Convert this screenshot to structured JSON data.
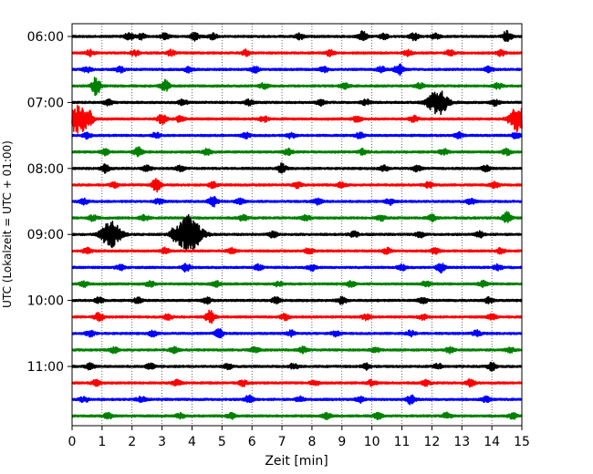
{
  "chart_data": {
    "type": "line",
    "title": "",
    "xlabel": "Zeit  [min]",
    "ylabel": "UTC (Lokalzeit = UTC + 01:00)",
    "xlim": [
      0,
      15
    ],
    "x_ticks": [
      "0",
      "1",
      "2",
      "3",
      "4",
      "5",
      "6",
      "7",
      "8",
      "9",
      "10",
      "11",
      "12",
      "13",
      "14",
      "15"
    ],
    "y_ticks": [
      "06:00",
      "07:00",
      "08:00",
      "09:00",
      "10:00",
      "11:00"
    ],
    "grid": "vertical-dotted",
    "series_colors": [
      "#000000",
      "#ff0000",
      "#0000ff",
      "#008000"
    ],
    "traces": [
      {
        "time": "06:00",
        "color": "#000000",
        "events": [
          [
            1.9,
            4
          ],
          [
            2.3,
            3
          ],
          [
            3.1,
            3
          ],
          [
            4.1,
            4
          ],
          [
            4.7,
            3
          ],
          [
            7.6,
            3
          ],
          [
            9.7,
            6
          ],
          [
            10.4,
            3
          ],
          [
            11.4,
            4
          ],
          [
            12.1,
            3
          ],
          [
            14.5,
            6
          ]
        ]
      },
      {
        "time": "06:15",
        "color": "#ff0000",
        "events": [
          [
            0.6,
            3
          ],
          [
            2.1,
            3
          ],
          [
            3.3,
            3
          ],
          [
            5.8,
            3
          ],
          [
            8.6,
            3
          ],
          [
            11.2,
            3
          ],
          [
            12.6,
            3
          ],
          [
            14.3,
            3
          ]
        ]
      },
      {
        "time": "06:30",
        "color": "#0000ff",
        "events": [
          [
            0.5,
            3
          ],
          [
            1.6,
            3
          ],
          [
            3.9,
            3
          ],
          [
            6.1,
            3
          ],
          [
            8.4,
            3
          ],
          [
            10.3,
            3
          ],
          [
            10.9,
            6
          ],
          [
            13.9,
            3
          ]
        ]
      },
      {
        "time": "06:45",
        "color": "#008000",
        "events": [
          [
            0.8,
            3
          ],
          [
            0.8,
            7
          ],
          [
            3.1,
            6
          ],
          [
            6.4,
            3
          ],
          [
            9.1,
            3
          ],
          [
            11.6,
            3
          ],
          [
            14.2,
            3
          ]
        ]
      },
      {
        "time": "07:00",
        "color": "#000000",
        "events": [
          [
            1.2,
            3
          ],
          [
            3.7,
            3
          ],
          [
            5.9,
            3
          ],
          [
            8.3,
            3
          ],
          [
            9.8,
            3
          ],
          [
            12.2,
            14
          ],
          [
            14.1,
            3
          ]
        ]
      },
      {
        "time": "07:15",
        "color": "#ff0000",
        "events": [
          [
            0.2,
            16
          ],
          [
            0.6,
            5
          ],
          [
            3.0,
            5
          ],
          [
            3.6,
            3
          ],
          [
            6.4,
            3
          ],
          [
            9.5,
            3
          ],
          [
            11.4,
            3
          ],
          [
            14.9,
            14
          ]
        ]
      },
      {
        "time": "07:30",
        "color": "#0000ff",
        "events": [
          [
            0.5,
            3
          ],
          [
            2.8,
            3
          ],
          [
            5.8,
            3
          ],
          [
            7.3,
            3
          ],
          [
            9.6,
            3
          ],
          [
            12.9,
            3
          ],
          [
            14.8,
            3
          ]
        ]
      },
      {
        "time": "07:45",
        "color": "#008000",
        "events": [
          [
            1.1,
            3
          ],
          [
            2.2,
            5
          ],
          [
            4.5,
            3
          ],
          [
            7.2,
            3
          ],
          [
            9.7,
            3
          ],
          [
            12.4,
            3
          ],
          [
            14.5,
            3
          ]
        ]
      },
      {
        "time": "08:00",
        "color": "#000000",
        "events": [
          [
            1.1,
            4
          ],
          [
            2.5,
            3
          ],
          [
            3.6,
            3
          ],
          [
            7.0,
            5
          ],
          [
            10.4,
            3
          ],
          [
            11.5,
            3
          ],
          [
            13.8,
            3
          ]
        ]
      },
      {
        "time": "08:15",
        "color": "#ff0000",
        "events": [
          [
            1.4,
            3
          ],
          [
            2.8,
            7
          ],
          [
            4.7,
            3
          ],
          [
            7.5,
            3
          ],
          [
            9.0,
            3
          ],
          [
            11.9,
            3
          ],
          [
            14.1,
            3
          ]
        ]
      },
      {
        "time": "08:30",
        "color": "#0000ff",
        "events": [
          [
            0.4,
            3
          ],
          [
            2.9,
            3
          ],
          [
            4.7,
            6
          ],
          [
            5.6,
            3
          ],
          [
            8.2,
            3
          ],
          [
            10.6,
            3
          ],
          [
            13.3,
            3
          ]
        ]
      },
      {
        "time": "08:45",
        "color": "#008000",
        "events": [
          [
            0.7,
            3
          ],
          [
            2.4,
            3
          ],
          [
            5.7,
            3
          ],
          [
            7.8,
            3
          ],
          [
            10.3,
            3
          ],
          [
            12.0,
            3
          ],
          [
            14.5,
            6
          ]
        ]
      },
      {
        "time": "09:00",
        "color": "#000000",
        "events": [
          [
            1.3,
            14
          ],
          [
            3.4,
            5
          ],
          [
            3.8,
            16
          ],
          [
            4.1,
            9
          ],
          [
            6.7,
            3
          ],
          [
            9.4,
            3
          ],
          [
            11.6,
            3
          ],
          [
            13.6,
            3
          ]
        ]
      },
      {
        "time": "09:15",
        "color": "#ff0000",
        "events": [
          [
            0.5,
            3
          ],
          [
            3.1,
            3
          ],
          [
            5.3,
            3
          ],
          [
            7.9,
            3
          ],
          [
            10.5,
            3
          ],
          [
            12.1,
            3
          ],
          [
            14.3,
            3
          ]
        ]
      },
      {
        "time": "09:30",
        "color": "#0000ff",
        "events": [
          [
            1.6,
            3
          ],
          [
            3.8,
            4
          ],
          [
            6.2,
            3
          ],
          [
            8.0,
            3
          ],
          [
            11.0,
            3
          ],
          [
            12.3,
            5
          ],
          [
            14.2,
            3
          ]
        ]
      },
      {
        "time": "09:45",
        "color": "#008000",
        "events": [
          [
            0.4,
            3
          ],
          [
            2.6,
            3
          ],
          [
            4.8,
            3
          ],
          [
            6.9,
            3
          ],
          [
            9.3,
            3
          ],
          [
            11.8,
            3
          ],
          [
            13.7,
            3
          ]
        ]
      },
      {
        "time": "10:00",
        "color": "#000000",
        "events": [
          [
            0.9,
            3
          ],
          [
            2.2,
            3
          ],
          [
            4.5,
            3
          ],
          [
            6.8,
            3
          ],
          [
            9.0,
            4
          ],
          [
            11.7,
            3
          ],
          [
            13.9,
            3
          ]
        ]
      },
      {
        "time": "10:15",
        "color": "#ff0000",
        "events": [
          [
            0.9,
            5
          ],
          [
            3.2,
            3
          ],
          [
            4.6,
            7
          ],
          [
            7.1,
            3
          ],
          [
            9.8,
            3
          ],
          [
            11.7,
            3
          ],
          [
            14.0,
            3
          ]
        ]
      },
      {
        "time": "10:30",
        "color": "#0000ff",
        "events": [
          [
            0.6,
            3
          ],
          [
            2.7,
            3
          ],
          [
            4.9,
            5
          ],
          [
            7.3,
            3
          ],
          [
            8.8,
            3
          ],
          [
            11.3,
            3
          ],
          [
            13.5,
            3
          ]
        ]
      },
      {
        "time": "10:45",
        "color": "#008000",
        "events": [
          [
            1.4,
            3
          ],
          [
            3.4,
            3
          ],
          [
            6.1,
            3
          ],
          [
            7.7,
            3
          ],
          [
            10.1,
            3
          ],
          [
            12.6,
            3
          ],
          [
            14.6,
            3
          ]
        ]
      },
      {
        "time": "11:00",
        "color": "#000000",
        "events": [
          [
            0.6,
            3
          ],
          [
            2.6,
            3
          ],
          [
            5.2,
            3
          ],
          [
            7.4,
            3
          ],
          [
            9.8,
            3
          ],
          [
            12.2,
            3
          ],
          [
            14.0,
            4
          ]
        ]
      },
      {
        "time": "11:15",
        "color": "#ff0000",
        "events": [
          [
            0.8,
            3
          ],
          [
            3.5,
            3
          ],
          [
            5.7,
            3
          ],
          [
            8.1,
            3
          ],
          [
            10.0,
            3
          ],
          [
            11.8,
            3
          ],
          [
            13.3,
            4
          ]
        ]
      },
      {
        "time": "11:30",
        "color": "#0000ff",
        "events": [
          [
            0.4,
            3
          ],
          [
            2.3,
            3
          ],
          [
            5.9,
            4
          ],
          [
            7.6,
            3
          ],
          [
            9.6,
            3
          ],
          [
            11.3,
            5
          ],
          [
            13.8,
            3
          ]
        ]
      },
      {
        "time": "11:45",
        "color": "#008000",
        "events": [
          [
            1.2,
            3
          ],
          [
            3.6,
            3
          ],
          [
            5.3,
            3
          ],
          [
            8.5,
            3
          ],
          [
            10.2,
            3
          ],
          [
            12.5,
            3
          ],
          [
            14.7,
            3
          ]
        ]
      }
    ]
  }
}
